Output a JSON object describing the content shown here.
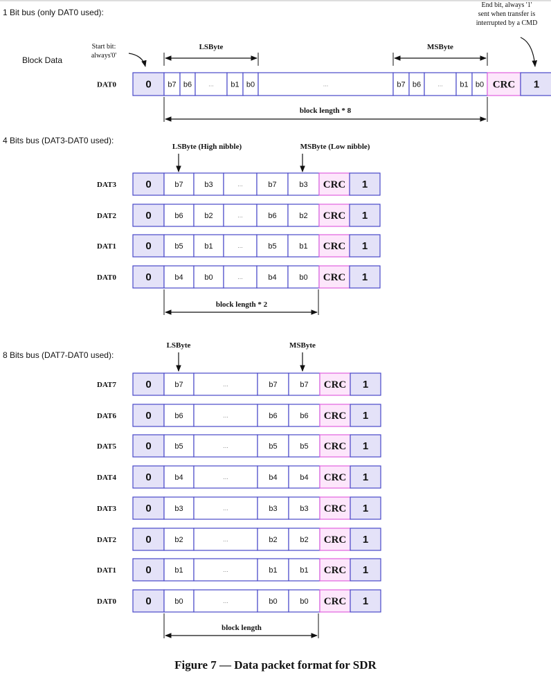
{
  "colors": {
    "cell_border": "#4848c8",
    "start_end_fill": "#e4e2f8",
    "crc_border": "#e060e0",
    "crc_fill": "#fde6fb",
    "text": "#111111",
    "gray": "#808080"
  },
  "section1": {
    "heading": "1 Bit bus (only DAT0 used):",
    "block_label": "Block Data",
    "start_note": [
      "Start bit:",
      "always'0'"
    ],
    "end_note": [
      "End bit, always '1'",
      "sent when transfer is",
      "interrupted by a CMD"
    ],
    "lsbyte": "LSByte",
    "msbyte": "MSByte",
    "line": {
      "name": "DAT0",
      "cells": [
        "0",
        "b7",
        "b6",
        "...",
        "b1",
        "b0",
        "...",
        "b7",
        "b6",
        "...",
        "b1",
        "b0",
        "CRC",
        "1"
      ]
    },
    "length_label": "block length * 8"
  },
  "section2": {
    "heading": "4 Bits bus (DAT3-DAT0 used):",
    "lsbyte": "LSByte (High nibble)",
    "msbyte": "MSByte (Low nibble)",
    "lines": [
      {
        "name": "DAT3",
        "cells": [
          "0",
          "b7",
          "b3",
          "...",
          "b7",
          "b3",
          "CRC",
          "1"
        ]
      },
      {
        "name": "DAT2",
        "cells": [
          "0",
          "b6",
          "b2",
          "...",
          "b6",
          "b2",
          "CRC",
          "1"
        ]
      },
      {
        "name": "DAT1",
        "cells": [
          "0",
          "b5",
          "b1",
          "...",
          "b5",
          "b1",
          "CRC",
          "1"
        ]
      },
      {
        "name": "DAT0",
        "cells": [
          "0",
          "b4",
          "b0",
          "...",
          "b4",
          "b0",
          "CRC",
          "1"
        ]
      }
    ],
    "length_label": "block length * 2"
  },
  "section3": {
    "heading": "8 Bits bus (DAT7-DAT0 used):",
    "lsbyte": "LSByte",
    "msbyte": "MSByte",
    "lines": [
      {
        "name": "DAT7",
        "cells": [
          "0",
          "b7",
          "...",
          "b7",
          "b7",
          "CRC",
          "1"
        ]
      },
      {
        "name": "DAT6",
        "cells": [
          "0",
          "b6",
          "...",
          "b6",
          "b6",
          "CRC",
          "1"
        ]
      },
      {
        "name": "DAT5",
        "cells": [
          "0",
          "b5",
          "...",
          "b5",
          "b5",
          "CRC",
          "1"
        ]
      },
      {
        "name": "DAT4",
        "cells": [
          "0",
          "b4",
          "...",
          "b4",
          "b4",
          "CRC",
          "1"
        ]
      },
      {
        "name": "DAT3",
        "cells": [
          "0",
          "b3",
          "...",
          "b3",
          "b3",
          "CRC",
          "1"
        ]
      },
      {
        "name": "DAT2",
        "cells": [
          "0",
          "b2",
          "...",
          "b2",
          "b2",
          "CRC",
          "1"
        ]
      },
      {
        "name": "DAT1",
        "cells": [
          "0",
          "b1",
          "...",
          "b1",
          "b1",
          "CRC",
          "1"
        ]
      },
      {
        "name": "DAT0",
        "cells": [
          "0",
          "b0",
          "...",
          "b0",
          "b0",
          "CRC",
          "1"
        ]
      }
    ],
    "length_label": "block length"
  },
  "caption": "Figure 7 — Data packet format for SDR"
}
